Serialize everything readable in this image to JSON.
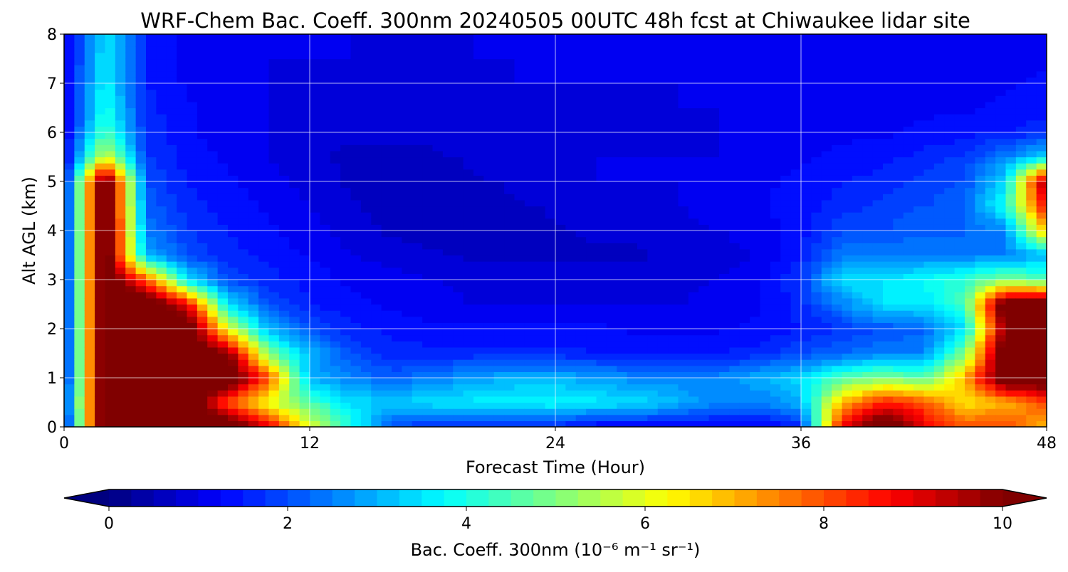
{
  "chart_data": {
    "type": "heatmap",
    "title": "WRF-Chem Bac. Coeff. 300nm  20240505 00UTC 48h fcst at Chiwaukee lidar site",
    "xlabel": "Forecast Time (Hour)",
    "ylabel": "Alt AGL (km)",
    "xlim": [
      0,
      48
    ],
    "ylim": [
      0,
      8
    ],
    "xticks": [
      0,
      12,
      24,
      36,
      48
    ],
    "yticks": [
      0,
      1,
      2,
      3,
      4,
      5,
      6,
      7,
      8
    ],
    "grid": true,
    "colormap": "jet",
    "x": [
      0,
      2,
      4,
      6,
      8,
      10,
      12,
      14,
      16,
      18,
      20,
      22,
      24,
      26,
      28,
      30,
      32,
      34,
      36,
      38,
      40,
      42,
      44,
      46,
      48
    ],
    "y": [
      0,
      0.5,
      1,
      1.5,
      2,
      2.5,
      3,
      3.5,
      4,
      4.5,
      5,
      5.5,
      6,
      6.5,
      7,
      7.5,
      8
    ],
    "values": [
      [
        1,
        11,
        11,
        11,
        11,
        9,
        6,
        4,
        2,
        1.5,
        1.5,
        1.5,
        1.5,
        1.2,
        1.2,
        1.2,
        1.2,
        1.2,
        1.5,
        9,
        11,
        9,
        8,
        8,
        7
      ],
      [
        1.5,
        11,
        11,
        11,
        8,
        6,
        4.5,
        3.5,
        3.2,
        3.5,
        3.6,
        3.7,
        3.8,
        3.6,
        3.5,
        3,
        2.5,
        2.5,
        3,
        7,
        8.5,
        8,
        6.5,
        7,
        8
      ],
      [
        1.2,
        11,
        11,
        11,
        11,
        8,
        3,
        2.5,
        2.2,
        2.5,
        2.8,
        3,
        3,
        2.8,
        2.6,
        2.6,
        2.6,
        3,
        3.4,
        4.5,
        5,
        4.5,
        7,
        11,
        11
      ],
      [
        1.1,
        11,
        11,
        11,
        10,
        5,
        3,
        2,
        1.6,
        1.6,
        1.6,
        1.6,
        1.6,
        1.5,
        1.5,
        1.5,
        1.5,
        1.6,
        2,
        2.2,
        2.5,
        2.5,
        5,
        11,
        11
      ],
      [
        1,
        11,
        11,
        11,
        6,
        3,
        2,
        1.6,
        1.4,
        1.3,
        1.3,
        1.3,
        1.3,
        1.3,
        1.2,
        1.2,
        1.2,
        1.3,
        1.5,
        1.8,
        2,
        2.2,
        3.5,
        10,
        11
      ],
      [
        1,
        11,
        11,
        9,
        3.5,
        2,
        1.5,
        1.3,
        1.2,
        1.1,
        1,
        1,
        1,
        1,
        1,
        1,
        1.1,
        1.2,
        1.6,
        2.5,
        3.5,
        3.5,
        4.5,
        11,
        11
      ],
      [
        1,
        11,
        8,
        3.5,
        2,
        1.6,
        1.4,
        1.2,
        1.1,
        1,
        0.9,
        0.9,
        0.9,
        0.9,
        0.9,
        0.9,
        1,
        1.2,
        1.8,
        3.5,
        3.5,
        3.8,
        4.2,
        5,
        4.5
      ],
      [
        1,
        11,
        3,
        2,
        1.6,
        1.4,
        1.2,
        1,
        0.9,
        0.8,
        0.7,
        0.7,
        0.7,
        0.7,
        0.7,
        0.8,
        0.9,
        1,
        1.5,
        2.5,
        2.5,
        2.5,
        2.5,
        2.5,
        3
      ],
      [
        1,
        11,
        2.5,
        1.8,
        1.5,
        1.3,
        1.1,
        0.9,
        0.7,
        0.6,
        0.6,
        0.6,
        0.7,
        0.8,
        0.8,
        0.9,
        1,
        1.1,
        1.4,
        2,
        2,
        2.2,
        2.2,
        2.5,
        7
      ],
      [
        1,
        11,
        2.2,
        1.6,
        1.4,
        1.2,
        1,
        0.8,
        0.6,
        0.6,
        0.6,
        0.7,
        0.8,
        0.9,
        0.9,
        1,
        1.1,
        1.2,
        1.4,
        1.6,
        1.8,
        2,
        2.2,
        4,
        9
      ],
      [
        1,
        11,
        2,
        1.5,
        1.3,
        1.1,
        0.9,
        0.7,
        0.6,
        0.6,
        0.7,
        0.8,
        0.9,
        1,
        1,
        1,
        1.1,
        1.2,
        1.3,
        1.5,
        1.6,
        1.8,
        2,
        3.5,
        10
      ],
      [
        1,
        6,
        1.8,
        1.4,
        1.2,
        1,
        0.8,
        0.7,
        0.7,
        0.7,
        0.8,
        0.9,
        1,
        1,
        1,
        1,
        1,
        1.1,
        1.2,
        1.3,
        1.4,
        1.6,
        1.8,
        2.5,
        3.5
      ],
      [
        1,
        4.5,
        1.7,
        1.3,
        1.1,
        1,
        0.8,
        0.8,
        0.8,
        0.8,
        0.9,
        0.9,
        0.9,
        0.9,
        0.9,
        0.9,
        1,
        1,
        1.1,
        1.2,
        1.2,
        1.3,
        1.4,
        1.5,
        1.7
      ],
      [
        1,
        4,
        1.6,
        1.3,
        1.1,
        1,
        0.9,
        0.9,
        0.9,
        0.9,
        0.9,
        0.9,
        0.9,
        0.9,
        0.9,
        1,
        1,
        1,
        1.1,
        1.1,
        1.2,
        1.2,
        1.2,
        1.3,
        1.4
      ],
      [
        1,
        3.8,
        1.5,
        1.2,
        1.1,
        1,
        0.9,
        0.9,
        0.9,
        0.9,
        0.9,
        1,
        1,
        1,
        1,
        1,
        1.1,
        1.1,
        1.1,
        1.1,
        1.1,
        1.1,
        1.2,
        1.2,
        1.3
      ],
      [
        1,
        3.6,
        1.5,
        1.2,
        1.1,
        1,
        1,
        1,
        0.9,
        0.9,
        1,
        1,
        1,
        1,
        1.1,
        1.1,
        1.1,
        1.1,
        1.1,
        1.1,
        1.1,
        1.1,
        1.1,
        1.2,
        1.2
      ],
      [
        1,
        3.5,
        1.5,
        1.2,
        1.1,
        1,
        1,
        1,
        1,
        1,
        1,
        1,
        1,
        1,
        1.1,
        1.1,
        1.1,
        1.1,
        1.1,
        1.1,
        1.1,
        1.1,
        1.1,
        1.1,
        1.1
      ]
    ],
    "colorbar": {
      "label": "Bac. Coeff. 300nm  (10⁻⁶ m⁻¹ sr⁻¹)",
      "range": [
        0,
        10
      ],
      "level_step": 0.25,
      "ticks": [
        0,
        2,
        4,
        6,
        8,
        10
      ],
      "extend": "both"
    }
  }
}
